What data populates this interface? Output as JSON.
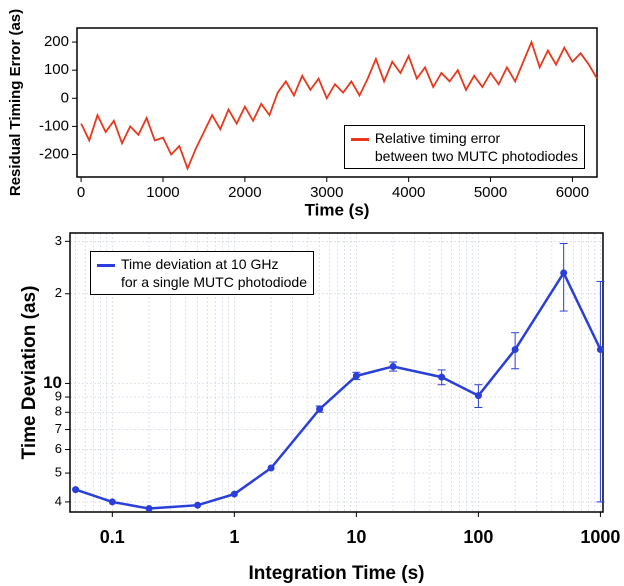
{
  "chart_data": [
    {
      "type": "line",
      "x_label": "Time (s)",
      "y_label": "Residual Timing Error (as)",
      "x": [
        0,
        100,
        200,
        300,
        400,
        500,
        600,
        700,
        800,
        900,
        1000,
        1100,
        1200,
        1300,
        1400,
        1500,
        1600,
        1700,
        1800,
        1900,
        2000,
        2100,
        2200,
        2300,
        2400,
        2500,
        2600,
        2700,
        2800,
        2900,
        3000,
        3100,
        3200,
        3300,
        3400,
        3500,
        3600,
        3700,
        3800,
        3900,
        4000,
        4100,
        4200,
        4300,
        4400,
        4500,
        4600,
        4700,
        4800,
        4900,
        5000,
        5100,
        5200,
        5300,
        5400,
        5500,
        5600,
        5700,
        5800,
        5900,
        6000,
        6100,
        6200,
        6300
      ],
      "series": [
        {
          "name": "Relative timing error\nbetween two MUTC photodiodes",
          "color": "#e8381c",
          "values": [
            -90,
            -150,
            -60,
            -120,
            -80,
            -160,
            -100,
            -130,
            -70,
            -150,
            -140,
            -200,
            -170,
            -250,
            -180,
            -120,
            -60,
            -110,
            -40,
            -90,
            -30,
            -80,
            -20,
            -60,
            20,
            60,
            10,
            80,
            30,
            70,
            0,
            50,
            20,
            60,
            10,
            70,
            140,
            60,
            130,
            90,
            150,
            70,
            110,
            40,
            90,
            60,
            100,
            30,
            80,
            40,
            90,
            50,
            110,
            60,
            130,
            200,
            110,
            170,
            120,
            180,
            130,
            160,
            120,
            70
          ]
        }
      ],
      "xlim": [
        -50,
        6300
      ],
      "xticks": [
        0,
        1000,
        2000,
        3000,
        4000,
        5000,
        6000
      ],
      "ylim": [
        -280,
        250
      ],
      "yticks": [
        -200,
        -100,
        0,
        100,
        200
      ],
      "legend": "lower right"
    },
    {
      "type": "line",
      "x_label": "Integration Time (s)",
      "y_label": "Time Deviation (as)",
      "x": [
        0.05,
        0.1,
        0.2,
        0.5,
        1,
        2,
        5,
        10,
        20,
        50,
        100,
        200,
        500,
        1000
      ],
      "series": [
        {
          "name": "Time deviation at 10 GHz\nfor a single MUTC photodiode",
          "color": "#2a3fd9",
          "values": [
            4.4,
            4.0,
            3.8,
            3.9,
            4.25,
            5.2,
            8.2,
            10.6,
            11.4,
            10.5,
            9.1,
            13,
            23.5,
            13
          ],
          "errors": [
            0,
            0,
            0,
            0,
            0,
            0,
            0.2,
            0.3,
            0.4,
            0.6,
            0.8,
            1.8,
            6,
            9
          ]
        }
      ],
      "xlim": [
        0.045,
        1050
      ],
      "xticks": [
        0.1,
        1,
        10,
        100,
        1000
      ],
      "log_x": true,
      "ylim": [
        3.7,
        32
      ],
      "yticks": [
        3,
        4,
        5,
        6,
        7,
        8,
        9,
        10,
        {
          "value": 20,
          "label": "2"
        },
        {
          "value": 30,
          "label": "3"
        }
      ],
      "log_y": true,
      "grid": true,
      "legend": "upper left"
    }
  ]
}
